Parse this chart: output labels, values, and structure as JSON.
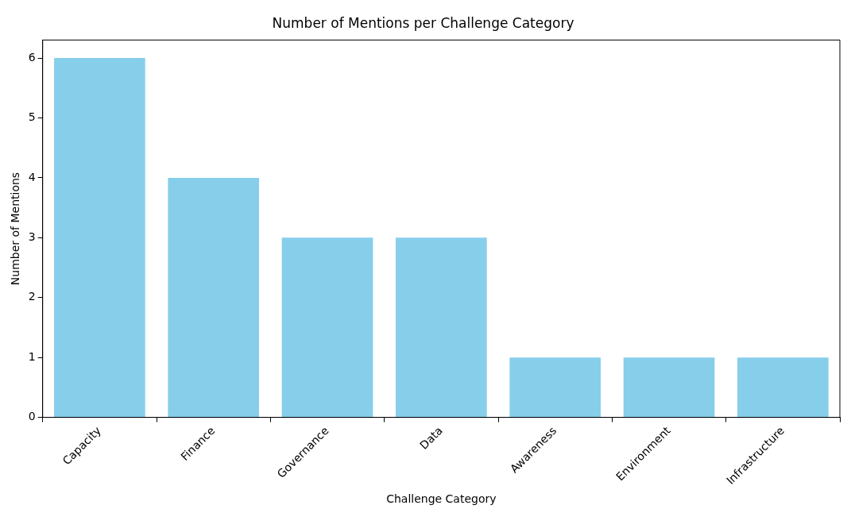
{
  "chart_data": {
    "type": "bar",
    "title": "Number of Mentions per Challenge Category",
    "xlabel": "Challenge Category",
    "ylabel": "Number of Mentions",
    "categories": [
      "Capacity",
      "Finance",
      "Governance",
      "Data",
      "Awareness",
      "Environment",
      "Infrastructure"
    ],
    "values": [
      6,
      4,
      3,
      3,
      1,
      1,
      1
    ],
    "color": "#87ceeb",
    "ylim": [
      0,
      6.3
    ],
    "yticks": [
      0,
      1,
      2,
      3,
      4,
      5,
      6
    ],
    "grid": false,
    "legend": false
  }
}
